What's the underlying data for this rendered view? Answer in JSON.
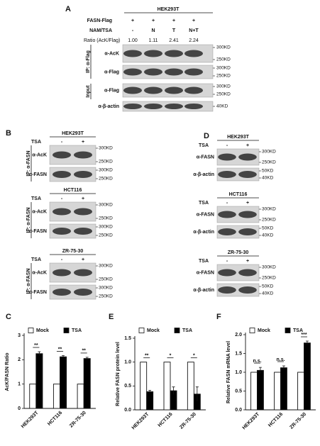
{
  "panels": {
    "A": {
      "letter": "A",
      "cell_line": "HEK293T",
      "conditions": [
        {
          "label": "FASN-Flag",
          "values": [
            "+",
            "+",
            "+",
            "+"
          ]
        },
        {
          "label": "NAM/TSA",
          "values": [
            "-",
            "N",
            "T",
            "N+T"
          ]
        }
      ],
      "ratio": {
        "label": "Ratio (AcK/Flag)",
        "values": [
          "1.00",
          "1.11",
          "2.41",
          "2.24"
        ]
      },
      "blots": [
        {
          "antibody": "α-AcK",
          "markers": [
            "300KD",
            "250KD"
          ]
        },
        {
          "antibody": "α-Flag",
          "markers": [
            "300KD",
            "250KD"
          ]
        },
        {
          "antibody": "α-Flag",
          "markers": [
            "300KD",
            "250KD"
          ]
        },
        {
          "antibody": "α-β-actin",
          "markers": [
            "40KD"
          ]
        }
      ],
      "groups": [
        "IP: α-Flag",
        "Input"
      ]
    },
    "B": {
      "letter": "B",
      "blocks": [
        {
          "cell_line": "HEK293T",
          "treatment": {
            "label": "TSA",
            "values": [
              "-",
              "+"
            ]
          },
          "group": "IP: α-FASN",
          "blots": [
            {
              "antibody": "α-AcK",
              "markers": [
                "300KD",
                "250KD"
              ]
            },
            {
              "antibody": "α-FASN",
              "markers": [
                "300KD",
                "250KD"
              ]
            }
          ]
        },
        {
          "cell_line": "HCT116",
          "treatment": {
            "label": "TSA",
            "values": [
              "-",
              "+"
            ]
          },
          "group": "IP: α-FASN",
          "blots": [
            {
              "antibody": "α-AcK",
              "markers": [
                "300KD",
                "250KD"
              ]
            },
            {
              "antibody": "α-FASN",
              "markers": [
                "300KD",
                "250KD"
              ]
            }
          ]
        },
        {
          "cell_line": "ZR-75-30",
          "treatment": {
            "label": "TSA",
            "values": [
              "-",
              "+"
            ]
          },
          "group": "IP: α-FASN",
          "blots": [
            {
              "antibody": "α-AcK",
              "markers": [
                "300KD",
                "250KD"
              ]
            },
            {
              "antibody": "α-FASN",
              "markers": [
                "300KD",
                "250KD"
              ]
            }
          ]
        }
      ]
    },
    "D": {
      "letter": "D",
      "blocks": [
        {
          "cell_line": "HEK293T",
          "treatment": {
            "label": "TSA",
            "values": [
              "-",
              "+"
            ]
          },
          "blots": [
            {
              "antibody": "α-FASN",
              "markers": [
                "300KD",
                "250KD"
              ]
            },
            {
              "antibody": "α-β-actin",
              "markers": [
                "50KD",
                "40KD"
              ]
            }
          ]
        },
        {
          "cell_line": "HCT116",
          "treatment": {
            "label": "TSA",
            "values": [
              "-",
              "+"
            ]
          },
          "blots": [
            {
              "antibody": "α-FASN",
              "markers": [
                "300KD",
                "250KD"
              ]
            },
            {
              "antibody": "α-β-actin",
              "markers": [
                "50KD",
                "40KD"
              ]
            }
          ]
        },
        {
          "cell_line": "ZR-75-30",
          "treatment": {
            "label": "TSA",
            "values": [
              "-",
              "+"
            ]
          },
          "blots": [
            {
              "antibody": "α-FASN",
              "markers": [
                "300KD",
                "250KD"
              ]
            },
            {
              "antibody": "α-β-actin",
              "markers": [
                "50KD",
                "40KD"
              ]
            }
          ]
        }
      ]
    }
  },
  "chart_data": [
    {
      "type": "bar",
      "panel_label": "C",
      "y_label": "AcK/FASN Ratio",
      "categories": [
        "HEK293T",
        "HCT116",
        "ZR-75-30"
      ],
      "series": [
        {
          "name": "Mock",
          "color": "#ffffff",
          "values": [
            1,
            1,
            1
          ]
        },
        {
          "name": "TSA",
          "color": "#000000",
          "values": [
            2.25,
            2.12,
            2.05
          ],
          "errors": [
            0.08,
            0.05,
            0.05
          ]
        }
      ],
      "ylim": [
        0,
        3
      ],
      "yticks": [
        0,
        1,
        2,
        3
      ],
      "significance": [
        "**",
        "**",
        "**"
      ]
    },
    {
      "type": "bar",
      "panel_label": "E",
      "y_label": "Relative FASN protein level",
      "categories": [
        "HEK293T",
        "HCT116",
        "ZR-75-30"
      ],
      "series": [
        {
          "name": "Mock",
          "color": "#ffffff",
          "values": [
            1,
            1,
            1
          ]
        },
        {
          "name": "TSA",
          "color": "#000000",
          "values": [
            0.38,
            0.4,
            0.33
          ],
          "errors": [
            0.03,
            0.08,
            0.15
          ]
        }
      ],
      "ylim": [
        0,
        1.5
      ],
      "yticks": [
        {
          "value": 0,
          "label": "0.0"
        },
        0.5,
        {
          "value": 1,
          "label": "1.0"
        },
        1.5
      ],
      "significance": [
        "**",
        "*",
        "*"
      ]
    },
    {
      "type": "bar",
      "panel_label": "F",
      "y_label": "Relative FASN mRNA level",
      "categories": [
        "HEK293T",
        "HCT116",
        "ZR-75-30"
      ],
      "series": [
        {
          "name": "Mock",
          "color": "#ffffff",
          "values": [
            1,
            1,
            1
          ]
        },
        {
          "name": "TSA",
          "color": "#000000",
          "values": [
            1.05,
            1.12,
            1.78
          ],
          "errors": [
            0.08,
            0.05,
            0.05
          ]
        }
      ],
      "ylim": [
        0,
        2
      ],
      "yticks": [
        {
          "value": 0,
          "label": "0.0"
        },
        0.5,
        {
          "value": 1,
          "label": "1.0"
        },
        1.5,
        {
          "value": 2,
          "label": "2.0"
        }
      ],
      "significance": [
        "n.s.",
        "n.s.",
        "***"
      ]
    }
  ]
}
